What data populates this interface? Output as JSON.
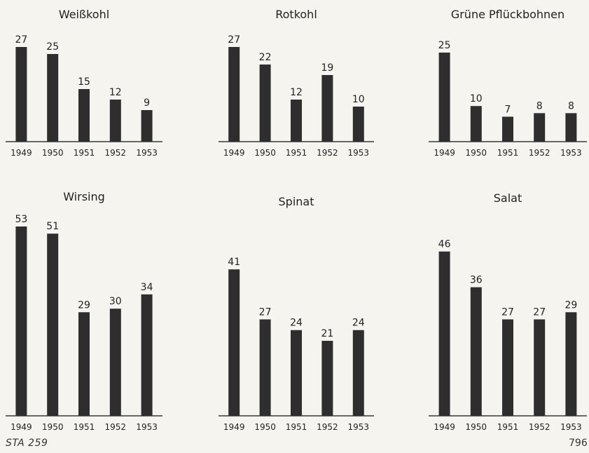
{
  "chart_data": [
    {
      "type": "bar",
      "title": "Weißkohl",
      "categories": [
        "1949",
        "1950",
        "1951",
        "1952",
        "1953"
      ],
      "values": [
        27,
        25,
        15,
        12,
        9
      ],
      "ylim": [
        0,
        27
      ]
    },
    {
      "type": "bar",
      "title": "Rotkohl",
      "categories": [
        "1949",
        "1950",
        "1951",
        "1952",
        "1953"
      ],
      "values": [
        27,
        22,
        12,
        19,
        10
      ],
      "ylim": [
        0,
        27
      ]
    },
    {
      "type": "bar",
      "title": "Grüne Pflückbohnen",
      "categories": [
        "1949",
        "1950",
        "1951",
        "1952",
        "1953"
      ],
      "values": [
        25,
        10,
        7,
        8,
        8
      ],
      "ylim": [
        0,
        25
      ]
    },
    {
      "type": "bar",
      "title": "Wirsing",
      "categories": [
        "1949",
        "1950",
        "1951",
        "1952",
        "1953"
      ],
      "values": [
        53,
        51,
        29,
        30,
        34
      ],
      "ylim": [
        0,
        53
      ]
    },
    {
      "type": "bar",
      "title": "Spinat",
      "categories": [
        "1949",
        "1950",
        "1951",
        "1952",
        "1953"
      ],
      "values": [
        41,
        27,
        24,
        21,
        24
      ],
      "ylim": [
        0,
        53
      ]
    },
    {
      "type": "bar",
      "title": "Salat",
      "categories": [
        "1949",
        "1950",
        "1951",
        "1952",
        "1953"
      ],
      "values": [
        46,
        36,
        27,
        27,
        29
      ],
      "ylim": [
        0,
        53
      ]
    }
  ],
  "footer": {
    "source": "STA 259",
    "page": "796"
  },
  "colors": {
    "bar": "#2e2e2e",
    "axis": "#3a3a3a",
    "text": "#222222"
  }
}
